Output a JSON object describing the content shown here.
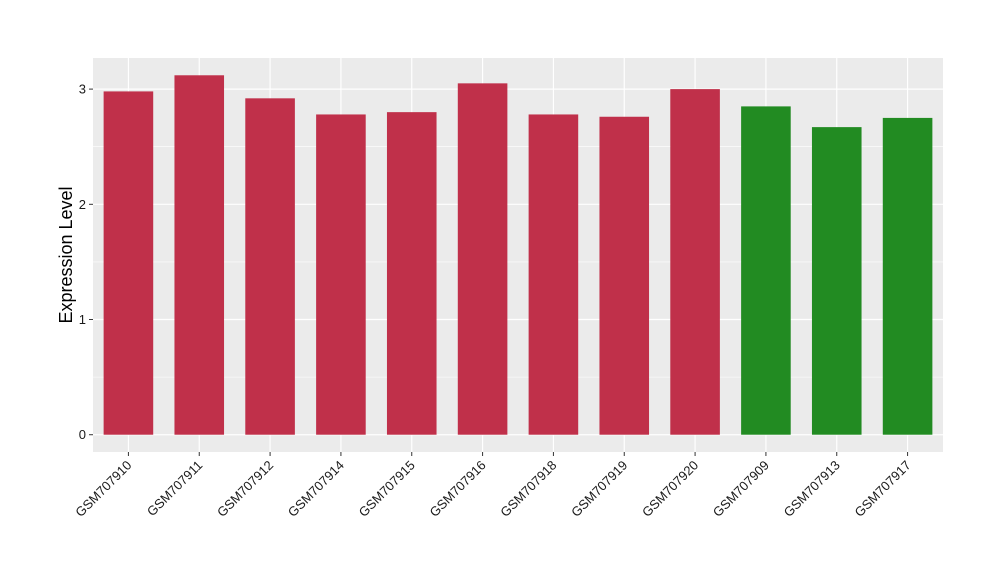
{
  "chart_data": {
    "type": "bar",
    "title": "",
    "xlabel": "",
    "ylabel": "Expression Level",
    "categories": [
      "GSM707910",
      "GSM707911",
      "GSM707912",
      "GSM707914",
      "GSM707915",
      "GSM707916",
      "GSM707918",
      "GSM707919",
      "GSM707920",
      "GSM707909",
      "GSM707913",
      "GSM707917"
    ],
    "values": [
      2.98,
      3.12,
      2.92,
      2.78,
      2.8,
      3.05,
      2.78,
      2.76,
      3.0,
      2.85,
      2.67,
      2.75
    ],
    "bar_colors": [
      "#c0304a",
      "#c0304a",
      "#c0304a",
      "#c0304a",
      "#c0304a",
      "#c0304a",
      "#c0304a",
      "#c0304a",
      "#c0304a",
      "#228b22",
      "#228b22",
      "#228b22"
    ],
    "ylim": [
      -0.15,
      3.27
    ],
    "yticks": [
      0,
      1,
      2,
      3
    ],
    "grid": true,
    "panel_color": "#ebebeb",
    "grid_color": "#ffffff",
    "legend": "none"
  }
}
